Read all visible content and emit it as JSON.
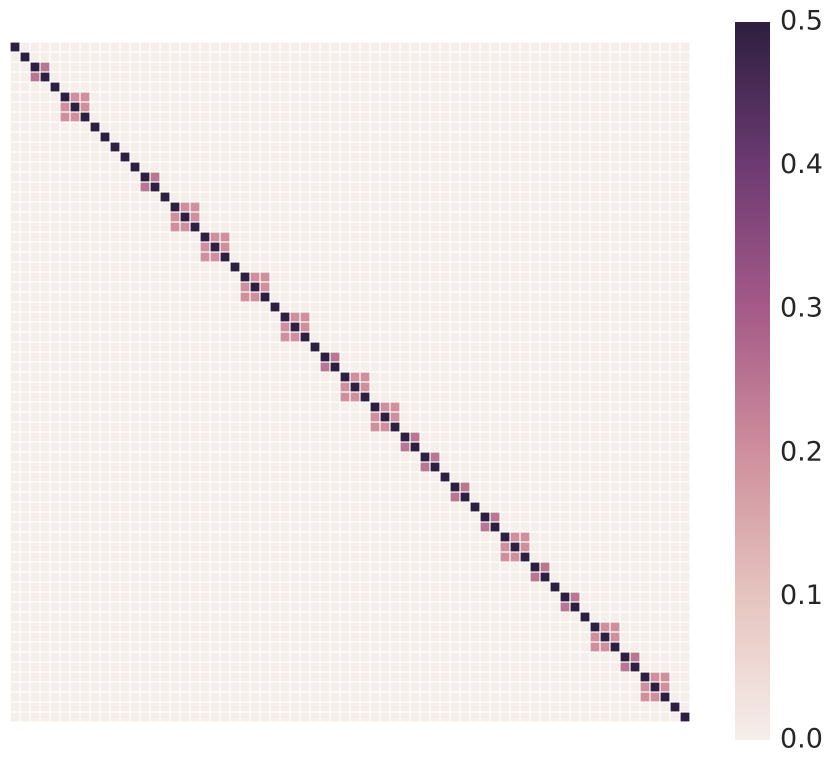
{
  "chart_data": {
    "type": "heatmap",
    "title": "",
    "xlabel": "",
    "ylabel": "",
    "n": 68,
    "grid_lines": true,
    "colorbar": {
      "position": "right",
      "range": [
        0.0,
        0.5
      ],
      "ticks": [
        "0.0",
        "0.1",
        "0.2",
        "0.3",
        "0.4",
        "0.5"
      ],
      "tick_values": [
        0.0,
        0.1,
        0.2,
        0.3,
        0.4,
        0.5
      ],
      "colors": [
        "#f6eeea",
        "#e6c4bf",
        "#cf8f9c",
        "#a55a88",
        "#6e3a73",
        "#2c1f3f"
      ]
    },
    "background_value": 0.0,
    "diagonal_value": 0.5,
    "blocks": [
      {
        "rows": [
          0,
          0
        ],
        "value": 0.5
      },
      {
        "rows": [
          1,
          1
        ],
        "value": 0.5
      },
      {
        "rows": [
          2,
          3
        ],
        "value": 0.25
      },
      {
        "rows": [
          4,
          4
        ],
        "value": 0.5
      },
      {
        "rows": [
          5,
          7
        ],
        "value": 0.2
      },
      {
        "rows": [
          8,
          8
        ],
        "value": 0.5
      },
      {
        "rows": [
          9,
          9
        ],
        "value": 0.5
      },
      {
        "rows": [
          10,
          10
        ],
        "value": 0.5
      },
      {
        "rows": [
          11,
          11
        ],
        "value": 0.5
      },
      {
        "rows": [
          12,
          12
        ],
        "value": 0.5
      },
      {
        "rows": [
          13,
          14
        ],
        "value": 0.25
      },
      {
        "rows": [
          15,
          15
        ],
        "value": 0.5
      },
      {
        "rows": [
          16,
          18
        ],
        "value": 0.2
      },
      {
        "rows": [
          19,
          21
        ],
        "value": 0.2
      },
      {
        "rows": [
          22,
          22
        ],
        "value": 0.5
      },
      {
        "rows": [
          23,
          25
        ],
        "value": 0.2
      },
      {
        "rows": [
          26,
          26
        ],
        "value": 0.5
      },
      {
        "rows": [
          27,
          29
        ],
        "value": 0.2
      },
      {
        "rows": [
          30,
          30
        ],
        "value": 0.5
      },
      {
        "rows": [
          31,
          32
        ],
        "value": 0.25
      },
      {
        "rows": [
          33,
          35
        ],
        "value": 0.2
      },
      {
        "rows": [
          36,
          38
        ],
        "value": 0.2
      },
      {
        "rows": [
          39,
          40
        ],
        "value": 0.25
      },
      {
        "rows": [
          41,
          42
        ],
        "value": 0.25
      },
      {
        "rows": [
          43,
          43
        ],
        "value": 0.5
      },
      {
        "rows": [
          44,
          45
        ],
        "value": 0.25
      },
      {
        "rows": [
          46,
          46
        ],
        "value": 0.5
      },
      {
        "rows": [
          47,
          48
        ],
        "value": 0.25
      },
      {
        "rows": [
          49,
          51
        ],
        "value": 0.2
      },
      {
        "rows": [
          52,
          53
        ],
        "value": 0.25
      },
      {
        "rows": [
          54,
          54
        ],
        "value": 0.5
      },
      {
        "rows": [
          55,
          56
        ],
        "value": 0.25
      },
      {
        "rows": [
          57,
          57
        ],
        "value": 0.5
      },
      {
        "rows": [
          58,
          60
        ],
        "value": 0.2
      },
      {
        "rows": [
          61,
          62
        ],
        "value": 0.25
      },
      {
        "rows": [
          63,
          65
        ],
        "value": 0.2
      },
      {
        "rows": [
          66,
          66
        ],
        "value": 0.5
      },
      {
        "rows": [
          67,
          67
        ],
        "value": 0.5
      }
    ]
  }
}
